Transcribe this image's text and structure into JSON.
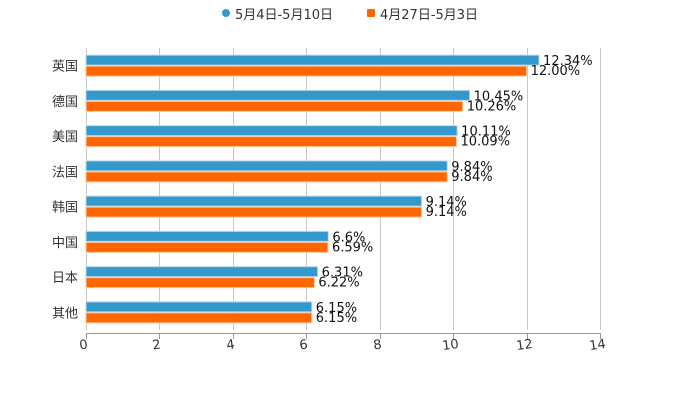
{
  "legend": {
    "series_a": "5月4日-5月10日",
    "series_b": "4月27日-5月3日"
  },
  "colors": {
    "series_a": "#3399CC",
    "series_b": "#FF6600",
    "grid": "#C8C8C8",
    "axis": "#999999"
  },
  "chart_data": {
    "type": "bar",
    "orientation": "horizontal",
    "title": "",
    "xlabel": "",
    "ylabel": "",
    "xlim": [
      0,
      14
    ],
    "xticks": [
      0,
      2,
      4,
      6,
      8,
      10,
      12,
      14
    ],
    "grid": true,
    "legend_position": "top",
    "categories": [
      "英国",
      "德国",
      "美国",
      "法国",
      "韩国",
      "中国",
      "日本",
      "其他"
    ],
    "series": [
      {
        "name": "5月4日-5月10日",
        "values": [
          12.34,
          10.45,
          10.11,
          9.84,
          9.14,
          6.6,
          6.31,
          6.15
        ],
        "labels": [
          "12.34%",
          "10.45%",
          "10.11%",
          "9.84%",
          "9.14%",
          "6.6%",
          "6.31%",
          "6.15%"
        ]
      },
      {
        "name": "4月27日-5月3日",
        "values": [
          12.0,
          10.26,
          10.09,
          9.84,
          9.14,
          6.59,
          6.22,
          6.15
        ],
        "labels": [
          "12.00%",
          "10.26%",
          "10.09%",
          "9.84%",
          "9.14%",
          "6.59%",
          "6.22%",
          "6.15%"
        ]
      }
    ]
  }
}
